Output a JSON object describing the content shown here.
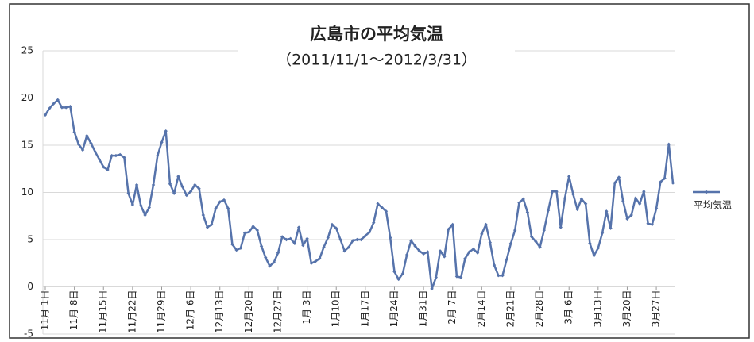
{
  "chart_data": {
    "type": "line",
    "title": "広島市の平均気温",
    "subtitle": "（2011/11/1～2012/3/31）",
    "categories": [
      "11月 1日",
      null,
      null,
      null,
      null,
      null,
      null,
      "11月 8日",
      null,
      null,
      null,
      null,
      null,
      null,
      "11月15日",
      null,
      null,
      null,
      null,
      null,
      null,
      "11月22日",
      null,
      null,
      null,
      null,
      null,
      null,
      "11月29日",
      null,
      null,
      null,
      null,
      null,
      null,
      "12月 6日",
      null,
      null,
      null,
      null,
      null,
      null,
      "12月13日",
      null,
      null,
      null,
      null,
      null,
      null,
      "12月20日",
      null,
      null,
      null,
      null,
      null,
      null,
      "12月27日",
      null,
      null,
      null,
      null,
      null,
      null,
      "1月 3日",
      null,
      null,
      null,
      null,
      null,
      null,
      "1月10日",
      null,
      null,
      null,
      null,
      null,
      null,
      "1月17日",
      null,
      null,
      null,
      null,
      null,
      null,
      "1月24日",
      null,
      null,
      null,
      null,
      null,
      null,
      "1月31日",
      null,
      null,
      null,
      null,
      null,
      null,
      "2月 7日",
      null,
      null,
      null,
      null,
      null,
      null,
      "2月14日",
      null,
      null,
      null,
      null,
      null,
      null,
      "2月21日",
      null,
      null,
      null,
      null,
      null,
      null,
      "2月28日",
      null,
      null,
      null,
      null,
      null,
      null,
      "3月 6日",
      null,
      null,
      null,
      null,
      null,
      null,
      "3月13日",
      null,
      null,
      null,
      null,
      null,
      null,
      "3月20日",
      null,
      null,
      null,
      null,
      null,
      null,
      "3月27日",
      null,
      null,
      null,
      null
    ],
    "series": [
      {
        "name": "平均気温",
        "color": "#5673ab",
        "values": [
          18.2,
          18.9,
          19.4,
          19.8,
          19.0,
          19.0,
          19.1,
          16.4,
          15.1,
          14.5,
          16.0,
          15.2,
          14.3,
          13.5,
          12.7,
          12.4,
          13.9,
          13.9,
          14.0,
          13.7,
          9.9,
          8.7,
          10.8,
          8.6,
          7.6,
          8.4,
          10.8,
          13.9,
          15.3,
          16.5,
          10.9,
          9.9,
          11.7,
          10.6,
          9.7,
          10.1,
          10.8,
          10.4,
          7.6,
          6.3,
          6.6,
          8.3,
          9.0,
          9.2,
          8.3,
          4.5,
          3.9,
          4.1,
          5.7,
          5.8,
          6.4,
          6.0,
          4.3,
          3.1,
          2.2,
          2.6,
          3.6,
          5.3,
          5.0,
          5.1,
          4.6,
          6.3,
          4.4,
          5.1,
          2.5,
          2.7,
          3.0,
          4.2,
          5.2,
          6.6,
          6.2,
          5.0,
          3.8,
          4.2,
          4.9,
          5.0,
          5.0,
          5.4,
          5.8,
          6.8,
          8.8,
          8.4,
          8.0,
          5.2,
          1.6,
          0.8,
          1.4,
          3.4,
          4.9,
          4.3,
          3.8,
          3.5,
          3.7,
          -0.2,
          1.0,
          3.8,
          3.2,
          6.1,
          6.6,
          1.1,
          1.0,
          3.0,
          3.7,
          4.0,
          3.6,
          5.6,
          6.6,
          4.7,
          2.3,
          1.2,
          1.2,
          2.9,
          4.6,
          6.0,
          8.9,
          9.3,
          7.9,
          5.3,
          4.8,
          4.2,
          6.0,
          8.1,
          10.1,
          10.1,
          6.3,
          9.4,
          11.7,
          9.8,
          8.2,
          9.3,
          8.8,
          4.6,
          3.3,
          4.1,
          5.7,
          8.0,
          6.2,
          11.0,
          11.6,
          9.1,
          7.2,
          7.6,
          9.4,
          8.8,
          10.1,
          6.7,
          6.6,
          8.3,
          11.1,
          11.5,
          15.1,
          11.0
        ]
      }
    ],
    "ylim": [
      -5,
      25
    ],
    "yticks": [
      -5,
      0,
      5,
      10,
      15,
      20,
      25
    ],
    "grid": true,
    "legend": "right"
  }
}
